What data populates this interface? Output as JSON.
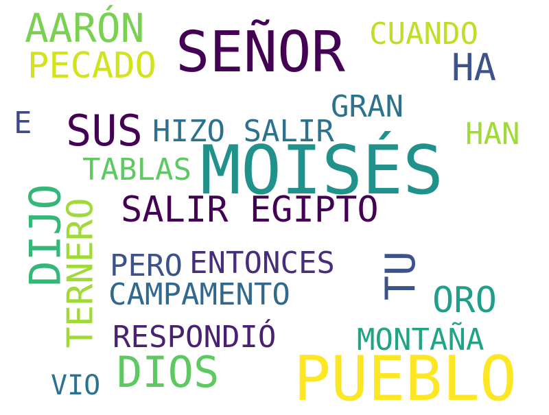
{
  "words": [
    {
      "text": "MOISÉS",
      "color": "#21918c"
    },
    {
      "text": "PUEBLO",
      "color": "#fde725"
    },
    {
      "text": "SEÑOR",
      "color": "#440154"
    },
    {
      "text": "AARÓN",
      "color": "#7ad151"
    },
    {
      "text": "SALIR EGIPTO",
      "color": "#440154"
    },
    {
      "text": "DIOS",
      "color": "#5ec962"
    },
    {
      "text": "SUS",
      "color": "#440154"
    },
    {
      "text": "PECADO",
      "color": "#d2e21b"
    },
    {
      "text": "HA",
      "color": "#3b528b"
    },
    {
      "text": "TU",
      "color": "#3b528b"
    },
    {
      "text": "CUANDO",
      "color": "#bddf26"
    },
    {
      "text": "HIZO SALIR",
      "color": "#2c728e"
    },
    {
      "text": "DIJO",
      "color": "#35b779"
    },
    {
      "text": "TERNERO",
      "color": "#a0da39"
    },
    {
      "text": "GRAN",
      "color": "#2c728e"
    },
    {
      "text": "HAN",
      "color": "#a0da39"
    },
    {
      "text": "TABLAS",
      "color": "#5ec962"
    },
    {
      "text": "PERO",
      "color": "#3b528b"
    },
    {
      "text": "ENTONCES",
      "color": "#472d7b"
    },
    {
      "text": "CAMPAMENTO",
      "color": "#31688e"
    },
    {
      "text": "ORO",
      "color": "#1f9e89"
    },
    {
      "text": "RESPONDIÓ",
      "color": "#482173"
    },
    {
      "text": "MONTAÑA",
      "color": "#20a486"
    },
    {
      "text": "VIO",
      "color": "#2c728e"
    },
    {
      "text": "E",
      "color": "#3e4989"
    }
  ]
}
